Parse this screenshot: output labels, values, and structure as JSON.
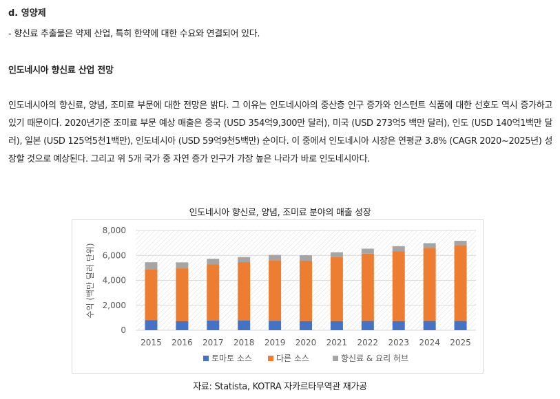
{
  "document": {
    "section_title": "d. 영양제",
    "bullet": "- 향신료 추출물은 약제 산업, 특히 한약에 대한 수요와 연결되어 있다.",
    "sub_heading": "인도네시아 향신료 산업 전망",
    "paragraph": "인도네시아의 향신료, 양념, 조미료 부문에 대한 전망은 밝다. 그 이유는 인도네시아의 중산층 인구 증가와 인스턴트 식품에 대한 선호도 역시 증가하고 있기 때문이다.  2020년기준 조미료 부문 예상 매출은 중국 (USD 354억9,300만 달러), 미국 (USD 273억5 백만 달러), 인도 (USD 140억1백만 달러), 일본 (USD 125억5천1백만), 인도네시아 (USD 59억9천5백만) 순이다. 이 중에서 인도네시아 시장은 연평균 3.8% (CAGR 2020~2025년) 성장할 것으로 예상된다. 그리고 위 5개 국가 중 자연 증가 인구가 가장 높은 나라가 바로 인도네시아다.",
    "source": "자료: Statista, KOTRA 자카르타무역관 재가공"
  },
  "colors": {
    "tomato": "#4472C4",
    "other": "#ED7D31",
    "herb": "#A5A5A5",
    "grid": "#d9d9d9",
    "text": "#222222",
    "axis_text": "#595959"
  },
  "chart_data": {
    "type": "bar",
    "stacked": true,
    "title": "인도네시아 향신료, 양념, 조미료 분야의 매출 성장",
    "ylabel": "수익 (백만 달러 단위)",
    "xlabel": "",
    "ylim": [
      0,
      8000
    ],
    "yticks": [
      "0",
      "2,000",
      "4,000",
      "6,000",
      "8,000"
    ],
    "legend_position": "bottom",
    "categories": [
      "2015",
      "2016",
      "2017",
      "2018",
      "2019",
      "2020",
      "2021",
      "2022",
      "2023",
      "2024",
      "2025"
    ],
    "series": [
      {
        "name": "토마토 소스",
        "color": "#4472C4",
        "values": [
          800,
          720,
          780,
          770,
          760,
          730,
          730,
          740,
          730,
          740,
          740
        ]
      },
      {
        "name": "다른 소스",
        "color": "#ED7D31",
        "values": [
          4100,
          4240,
          4490,
          4690,
          4850,
          4840,
          5120,
          5400,
          5610,
          5860,
          6070
        ]
      },
      {
        "name": "향신료 & 요리 허브",
        "color": "#A5A5A5",
        "values": [
          550,
          480,
          460,
          410,
          430,
          440,
          400,
          400,
          400,
          380,
          360
        ]
      }
    ]
  }
}
